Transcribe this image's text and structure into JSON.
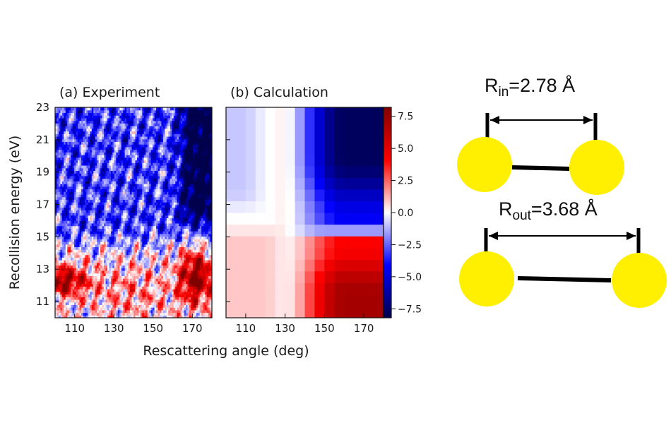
{
  "chart_data": {
    "type": "heatmap",
    "xlabel": "Rescattering angle (deg)",
    "ylabel": "Recollision energy (eV)",
    "x_range": [
      100,
      180
    ],
    "y_range": [
      10,
      23
    ],
    "x_ticks": [
      110,
      130,
      150,
      170
    ],
    "y_ticks": [
      11,
      13,
      15,
      17,
      19,
      21,
      23
    ],
    "panels": [
      {
        "label": "(a) Experiment",
        "features": [
          {
            "region": "angle 100-120 deg, energy 11.5-13.5 eV",
            "sign": "positive",
            "magnitude": "high"
          },
          {
            "region": "angle 160-180 deg, energy 11-14 eV",
            "sign": "positive",
            "magnitude": "high"
          },
          {
            "region": "angle 160-180 deg, energy 15.5-23 eV",
            "sign": "negative",
            "magnitude": "high"
          },
          {
            "region": "angle 100-150 deg, energy 14-23 eV",
            "sign": "negative",
            "magnitude": "moderate, fringed"
          }
        ]
      },
      {
        "label": "(b) Calculation",
        "features": [
          {
            "region": "angle 145-180 deg, energy 16-23 eV",
            "sign": "negative",
            "magnitude": "high"
          },
          {
            "region": "angle 100-130 deg, energy 16-23 eV",
            "sign": "negative",
            "magnitude": "low"
          },
          {
            "region": "angle 145-180 deg, energy 11-15 eV",
            "sign": "positive",
            "magnitude": "high"
          },
          {
            "region": "angle 100-130 deg, energy 11-15 eV",
            "sign": "positive",
            "magnitude": "low"
          }
        ]
      }
    ],
    "colorbar": {
      "range": [
        -8.2,
        8.2
      ],
      "ticks": [
        "7.5",
        "5.0",
        "2.5",
        "0.0",
        "−2.5",
        "−5.0",
        "−7.5"
      ],
      "colormap": "seismic",
      "colors": {
        "negative": "#00004c",
        "zero": "#ffffff",
        "positive": "#800000"
      }
    }
  },
  "diagram": {
    "atom_color": "#ffef00",
    "bond_color": "#000000",
    "inner": {
      "label": "R",
      "sub": "in",
      "value": "=2.78 Å"
    },
    "outer": {
      "label": "R",
      "sub": "out",
      "value": "=3.68 Å"
    }
  }
}
